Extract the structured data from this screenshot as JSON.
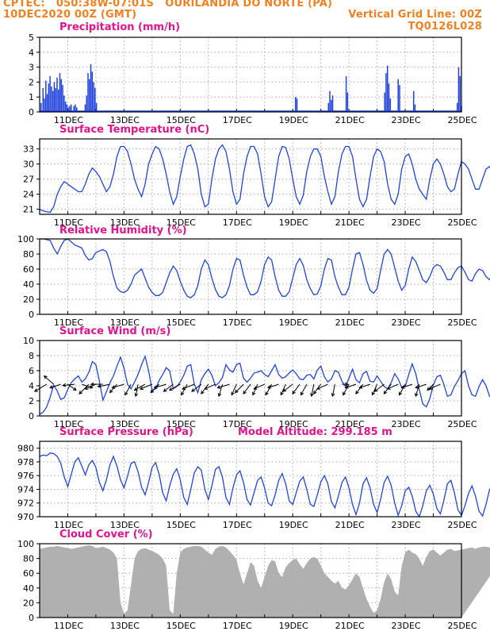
{
  "header": {
    "line1_left": "CPTEC:   050:38W-07:01S   OURILANDIA DO NORTE (PA)",
    "line2_left": "10DEC2020 00Z (GMT)",
    "line2_right": "Vertical Grid Line: 00Z",
    "line3_right": "TQ0126L028"
  },
  "colors": {
    "header": "#f08020",
    "title": "#e0148c",
    "series": "#2244dd",
    "cloud": "#b0b0b0",
    "arrow": "#000000"
  },
  "x_tick_labels": [
    "11DEC",
    "13DEC",
    "15DEC",
    "17DEC",
    "19DEC",
    "21DEC",
    "23DEC",
    "25DEC"
  ],
  "chart_data": [
    {
      "type": "bar",
      "title": "Precipitation (mm/h)",
      "ylim": [
        0,
        5
      ],
      "yticks": [
        "0",
        "1",
        "2",
        "3",
        "4",
        "5"
      ],
      "x_start_day": 10.0,
      "bars": [
        [
          10.05,
          0.6
        ],
        [
          10.12,
          1.6
        ],
        [
          10.17,
          0.9
        ],
        [
          10.22,
          2.1
        ],
        [
          10.27,
          1.2
        ],
        [
          10.32,
          1.9
        ],
        [
          10.37,
          2.4
        ],
        [
          10.42,
          1.7
        ],
        [
          10.47,
          1.4
        ],
        [
          10.52,
          2.0
        ],
        [
          10.57,
          1.6
        ],
        [
          10.62,
          2.3
        ],
        [
          10.67,
          1.5
        ],
        [
          10.72,
          2.6
        ],
        [
          10.77,
          2.2
        ],
        [
          10.82,
          1.8
        ],
        [
          10.87,
          1.1
        ],
        [
          10.92,
          0.7
        ],
        [
          10.97,
          0.5
        ],
        [
          11.02,
          0.3
        ],
        [
          11.07,
          0.4
        ],
        [
          11.12,
          0.5
        ],
        [
          11.22,
          0.4
        ],
        [
          11.27,
          0.5
        ],
        [
          11.32,
          0.3
        ],
        [
          11.62,
          0.5
        ],
        [
          11.67,
          1.1
        ],
        [
          11.72,
          2.6
        ],
        [
          11.77,
          2.2
        ],
        [
          11.82,
          3.2
        ],
        [
          11.87,
          2.7
        ],
        [
          11.92,
          2.0
        ],
        [
          11.97,
          1.6
        ],
        [
          12.02,
          0.6
        ],
        [
          19.1,
          1.0
        ],
        [
          19.15,
          0.9
        ],
        [
          20.27,
          0.6
        ],
        [
          20.32,
          1.4
        ],
        [
          20.37,
          0.8
        ],
        [
          20.42,
          1.1
        ],
        [
          20.9,
          2.4
        ],
        [
          20.95,
          1.3
        ],
        [
          22.27,
          1.3
        ],
        [
          22.32,
          2.6
        ],
        [
          22.37,
          3.1
        ],
        [
          22.42,
          1.9
        ],
        [
          22.47,
          0.9
        ],
        [
          22.75,
          2.2
        ],
        [
          22.8,
          1.8
        ],
        [
          23.3,
          1.4
        ],
        [
          23.35,
          0.5
        ],
        [
          24.85,
          0.6
        ],
        [
          24.9,
          3.0
        ],
        [
          24.95,
          2.4
        ],
        [
          25.0,
          0.4
        ]
      ]
    },
    {
      "type": "line",
      "title": "Surface Temperature (nC)",
      "ylim": [
        20,
        35
      ],
      "yticks": [
        "21",
        "24",
        "27",
        "30",
        "33"
      ],
      "ytick_values": [
        21,
        24,
        27,
        30,
        33
      ],
      "x_start_day": 10.0,
      "step_days": 0.125,
      "values": [
        21,
        20.7,
        20.5,
        20.4,
        21.5,
        24,
        25.5,
        26.5,
        26,
        25.5,
        25,
        24.5,
        24.5,
        26,
        28,
        29.2,
        28.5,
        27.5,
        26,
        24.5,
        25.5,
        28,
        31.5,
        33.5,
        33.5,
        32.5,
        30,
        27,
        25,
        23.5,
        26,
        30,
        32,
        33.5,
        33,
        31,
        28,
        24.5,
        22,
        23.5,
        27.5,
        31,
        33.5,
        33.8,
        32,
        29,
        24,
        21.5,
        22,
        27,
        31,
        33,
        33.8,
        32.5,
        29,
        24.5,
        22,
        23,
        28,
        31.5,
        33.5,
        33.5,
        32,
        28,
        23.5,
        21.5,
        22.5,
        27,
        31.5,
        33.5,
        33.3,
        31,
        27,
        23.5,
        22,
        23.8,
        28.5,
        31.5,
        33,
        33,
        31.5,
        27.5,
        24.5,
        22,
        23.5,
        28.5,
        32,
        33.5,
        33.5,
        31.5,
        27,
        23,
        21.5,
        23,
        27.5,
        31.5,
        33,
        32.5,
        30.5,
        26,
        23,
        22,
        24,
        29,
        31.5,
        32,
        30,
        27,
        25,
        24,
        23,
        27,
        30,
        31,
        30,
        28,
        25.5,
        24.5,
        25,
        28,
        30.5,
        30,
        29,
        27,
        25,
        25,
        27,
        29,
        29.5,
        28,
        26,
        25,
        26.5,
        29,
        30,
        29.5,
        29
      ]
    },
    {
      "type": "line",
      "title": "Relative Humidity (%)",
      "ylim": [
        0,
        100
      ],
      "yticks": [
        "0",
        "20",
        "40",
        "60",
        "80",
        "100"
      ],
      "ytick_values": [
        0,
        20,
        40,
        60,
        80,
        100
      ],
      "x_start_day": 10.0,
      "step_days": 0.125,
      "values": [
        100,
        100,
        99,
        98,
        88,
        80,
        90,
        98,
        100,
        96,
        92,
        90,
        88,
        78,
        72,
        74,
        82,
        84,
        86,
        83,
        70,
        50,
        35,
        30,
        29,
        32,
        40,
        52,
        56,
        60,
        48,
        36,
        29,
        25,
        25,
        29,
        42,
        55,
        64,
        58,
        44,
        32,
        24,
        22,
        26,
        38,
        60,
        72,
        66,
        48,
        33,
        24,
        22,
        26,
        38,
        60,
        74,
        72,
        52,
        36,
        26,
        26,
        30,
        44,
        66,
        76,
        72,
        50,
        32,
        24,
        24,
        30,
        48,
        66,
        74,
        65,
        46,
        34,
        26,
        27,
        38,
        60,
        74,
        72,
        50,
        36,
        26,
        26,
        36,
        60,
        80,
        82,
        66,
        45,
        32,
        28,
        34,
        58,
        80,
        86,
        80,
        62,
        44,
        32,
        38,
        60,
        76,
        70,
        58,
        46,
        42,
        50,
        62,
        66,
        64,
        56,
        46,
        46,
        55,
        62,
        64,
        56,
        46,
        44,
        54,
        60,
        58,
        50,
        46,
        52,
        72,
        82,
        86,
        78,
        60,
        52,
        58,
        52,
        56
      ]
    },
    {
      "type": "line",
      "title": "Surface Wind (m/s)",
      "ylim": [
        0,
        10
      ],
      "yticks": [
        "0",
        "2",
        "4",
        "6",
        "8",
        "10"
      ],
      "ytick_values": [
        0,
        2,
        4,
        6,
        8,
        10
      ],
      "x_start_day": 10.0,
      "step_days": 0.125,
      "values": [
        0.2,
        0.5,
        1.2,
        2.5,
        4.1,
        3.3,
        2.2,
        2.4,
        3.5,
        4.4,
        4.9,
        5.3,
        4.5,
        4.9,
        5.8,
        7.2,
        6.8,
        4.6,
        2.1,
        3.2,
        4.4,
        5.3,
        6.6,
        7.8,
        6.3,
        4.2,
        3.6,
        4.5,
        5.5,
        6.8,
        7.9,
        6.0,
        3.4,
        3.6,
        4.7,
        5.5,
        6.4,
        6.0,
        3.6,
        3.9,
        4.5,
        5.4,
        6.6,
        6.8,
        4.2,
        3.1,
        4.8,
        5.6,
        6.2,
        5.4,
        4.0,
        4.4,
        5.1,
        6.8,
        6.1,
        5.8,
        6.8,
        7.0,
        5.0,
        4.5,
        5.0,
        5.7,
        5.8,
        6.0,
        5.5,
        5.2,
        6.0,
        6.8,
        5.5,
        5.0,
        5.2,
        5.7,
        6.1,
        5.6,
        4.9,
        4.8,
        5.4,
        5.5,
        4.9,
        6.1,
        6.6,
        5.2,
        4.5,
        4.9,
        6.0,
        5.8,
        4.6,
        3.9,
        5.0,
        6.2,
        4.8,
        4.4,
        5.6,
        5.9,
        4.6,
        4.5,
        5.3,
        4.6,
        3.9,
        3.6,
        4.4,
        5.6,
        4.9,
        3.8,
        3.9,
        5.5,
        6.9,
        5.6,
        3.5,
        1.6,
        1.2,
        2.3,
        4.1,
        5.2,
        5.4,
        4.2,
        2.6,
        2.8,
        3.9,
        4.7,
        5.6,
        6.0,
        4.0,
        2.8,
        2.6,
        3.9,
        4.8,
        4.0,
        2.6,
        2.3,
        2.8,
        4.0,
        3.8,
        2.4,
        0.8,
        1.3,
        2.2,
        4.2
      ]
    },
    {
      "type": "line",
      "title": "Surface Pressure (hPa)",
      "annotation": "Model Altitude: 299.185 m",
      "ylim": [
        970,
        981
      ],
      "yticks": [
        "970",
        "972",
        "974",
        "976",
        "978",
        "980"
      ],
      "ytick_values": [
        970,
        972,
        974,
        976,
        978,
        980
      ],
      "x_start_day": 10.0,
      "step_days": 0.125,
      "values": [
        978.8,
        979.0,
        978.9,
        979.3,
        979.2,
        978.8,
        977.8,
        975.8,
        974.4,
        976.2,
        978.0,
        978.6,
        977.4,
        976.1,
        977.6,
        978.2,
        977.2,
        975.0,
        973.8,
        975.4,
        977.6,
        978.8,
        977.4,
        975.4,
        974.2,
        975.9,
        977.8,
        978.0,
        976.6,
        974.3,
        973.2,
        975.0,
        977.2,
        977.9,
        976.2,
        973.5,
        972.3,
        974.5,
        976.2,
        977.0,
        975.4,
        972.8,
        971.8,
        974.0,
        976.4,
        977.3,
        976.8,
        974.0,
        972.5,
        974.5,
        976.9,
        977.3,
        975.8,
        972.8,
        971.8,
        974.2,
        976.1,
        976.7,
        975.0,
        972.5,
        971.7,
        973.5,
        975.3,
        975.8,
        974.2,
        972.0,
        971.6,
        973.2,
        975.3,
        976.3,
        974.8,
        972.3,
        971.8,
        973.5,
        975.2,
        975.8,
        974.0,
        971.8,
        971.5,
        973.2,
        975.1,
        976.0,
        974.8,
        972.2,
        971.3,
        973.0,
        975.0,
        975.8,
        974.2,
        971.8,
        970.3,
        972.0,
        974.8,
        975.7,
        974.2,
        971.8,
        970.6,
        972.5,
        975.0,
        975.9,
        974.6,
        972.0,
        970.2,
        971.6,
        973.8,
        974.3,
        973.0,
        970.8,
        970.0,
        971.6,
        973.8,
        974.6,
        973.3,
        971.2,
        970.4,
        972.4,
        974.8,
        975.3,
        973.5,
        971.0,
        970.2,
        971.6,
        973.4,
        974.5,
        973.0,
        970.8,
        970.1,
        971.8,
        974.0,
        974.6,
        973.0,
        970.5,
        970.0
      ]
    },
    {
      "type": "area",
      "title": "Cloud Cover (%)",
      "ylim": [
        0,
        100
      ],
      "yticks": [
        "0",
        "20",
        "40",
        "60",
        "80",
        "100"
      ],
      "ytick_values": [
        0,
        20,
        40,
        60,
        80,
        100
      ],
      "x_start_day": 10.0,
      "step_days": 0.125,
      "values": [
        93,
        94,
        95,
        96,
        96,
        97,
        96,
        95,
        94,
        93,
        94,
        95,
        96,
        97,
        98,
        97,
        94,
        95,
        96,
        94,
        92,
        88,
        80,
        20,
        5,
        10,
        45,
        80,
        90,
        93,
        94,
        92,
        90,
        88,
        85,
        80,
        70,
        10,
        5,
        60,
        88,
        93,
        95,
        96,
        97,
        97,
        96,
        92,
        88,
        85,
        93,
        96,
        97,
        95,
        90,
        85,
        78,
        60,
        45,
        60,
        75,
        70,
        50,
        40,
        55,
        70,
        78,
        76,
        60,
        55,
        68,
        74,
        78,
        80,
        72,
        66,
        74,
        80,
        82,
        80,
        70,
        60,
        55,
        50,
        46,
        50,
        40,
        38,
        44,
        52,
        60,
        55,
        40,
        25,
        15,
        6,
        10,
        25,
        48,
        60,
        52,
        35,
        30,
        70,
        88,
        92,
        88,
        86,
        80,
        70,
        82,
        90,
        92,
        88,
        84,
        88,
        92,
        93,
        90,
        91,
        92,
        93,
        94,
        95,
        93,
        95,
        96,
        96,
        95,
        95,
        96,
        94,
        95,
        96,
        97
      ]
    },
    {
      "type": "wind_arrows",
      "note": "Wind direction arrows (dx, dy in screen sense: +x east, +y south) for the Surface Wind panel",
      "x_start_day": 10.0,
      "step_days": 0.25,
      "vectors": [
        [
          -1,
          0.6
        ],
        [
          -0.8,
          -0.7
        ],
        [
          -0.9,
          0.3
        ],
        [
          0.7,
          0.5
        ],
        [
          -1,
          0.1
        ],
        [
          0.9,
          0.3
        ],
        [
          -0.8,
          0.8
        ],
        [
          -0.9,
          0.4
        ],
        [
          -1,
          0
        ],
        [
          -1,
          0.2
        ],
        [
          -0.6,
          0.7
        ],
        [
          -1,
          0.3
        ],
        [
          -0.5,
          0.9
        ],
        [
          -0.2,
          1
        ],
        [
          -0.9,
          0.5
        ],
        [
          -1,
          0.4
        ],
        [
          -0.7,
          0.7
        ],
        [
          -1,
          0.3
        ],
        [
          -0.8,
          0.6
        ],
        [
          -0.9,
          0.5
        ],
        [
          -0.5,
          0.9
        ],
        [
          -1,
          0.4
        ],
        [
          -0.8,
          0.6
        ],
        [
          -0.6,
          0.8
        ],
        [
          -0.9,
          0.4
        ],
        [
          -0.3,
          1
        ],
        [
          -1,
          0.3
        ],
        [
          -0.4,
          0.9
        ],
        [
          -0.7,
          0.7
        ],
        [
          -0.6,
          0.8
        ],
        [
          -0.4,
          0.9
        ],
        [
          -0.9,
          0.4
        ],
        [
          -0.5,
          0.9
        ],
        [
          -0.9,
          0.3
        ],
        [
          -0.4,
          0.9
        ],
        [
          -0.8,
          0.6
        ],
        [
          -0.6,
          0.8
        ],
        [
          -0.5,
          0.9
        ],
        [
          -0.2,
          1
        ],
        [
          -0.6,
          0.8
        ],
        [
          -0.9,
          0.4
        ],
        [
          -0.2,
          1
        ],
        [
          0.5,
          0
        ],
        [
          -0.5,
          0.9
        ],
        [
          -0.9,
          0.3
        ],
        [
          -0.6,
          0.8
        ],
        [
          -0.9,
          0.3
        ],
        [
          -0.4,
          0.9
        ],
        [
          -0.8,
          0.6
        ],
        [
          -0.6,
          0.8
        ],
        [
          -0.9,
          0.4
        ],
        [
          -0.5,
          0.9
        ],
        [
          -0.9,
          0.3
        ],
        [
          -0.3,
          1
        ],
        [
          -0.9,
          0.3
        ],
        [
          -0.5,
          0.5
        ],
        [
          -0.9,
          0.4
        ]
      ]
    }
  ]
}
